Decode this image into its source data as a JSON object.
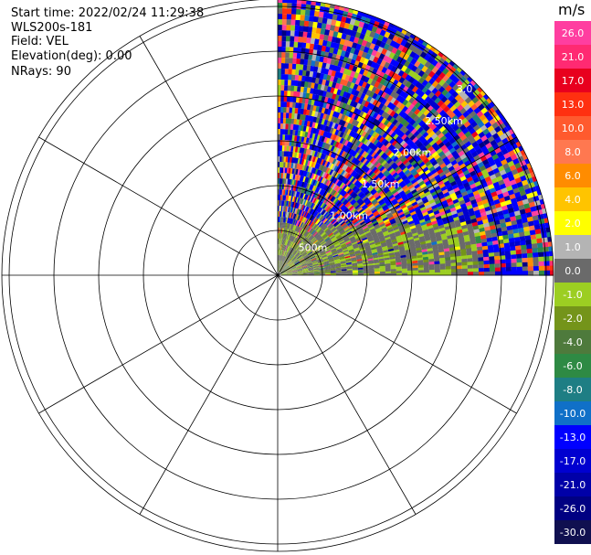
{
  "header": {
    "start_time": "Start time: 2022/02/24 11:29:38",
    "instrument": "WLS200s-181",
    "field": "Field: VEL",
    "elevation": "Elevation(deg): 0.00",
    "nrays": "NRays: 90"
  },
  "chart_data": {
    "type": "ppi-polar",
    "field": "VEL",
    "units": "m/s",
    "sector_deg": [
      0,
      90
    ],
    "range_rings_km": [
      0.5,
      1.0,
      1.5,
      2.0,
      2.5,
      3.0
    ],
    "range_ring_labels": [
      "500m",
      "1.00km",
      "1.50km",
      "2.00km",
      "2.50km",
      "3.0"
    ],
    "spokes_deg": [
      0,
      30,
      60,
      90,
      120,
      150,
      180,
      210,
      240,
      270,
      300,
      330
    ],
    "colorbar": {
      "ticks": [
        "26.0",
        "21.0",
        "17.0",
        "13.0",
        "10.0",
        "8.0",
        "6.0",
        "4.0",
        "2.0",
        "1.0",
        "0.0",
        "-1.0",
        "-2.0",
        "-4.0",
        "-6.0",
        "-8.0",
        "-10.0",
        "-13.0",
        "-17.0",
        "-21.0",
        "-26.0",
        "-30.0"
      ],
      "colors": [
        "#ff3ea0",
        "#ff2a72",
        "#e8001e",
        "#ff3010",
        "#ff5a2e",
        "#ff7850",
        "#ff8c00",
        "#ffc400",
        "#ffff00",
        "#b4b4b4",
        "#6a6a6a",
        "#9cce22",
        "#74941a",
        "#4e7a3c",
        "#2e8a44",
        "#1e7e84",
        "#1070c8",
        "#0000ff",
        "#0000d0",
        "#0000a8",
        "#000082",
        "#101050"
      ]
    }
  }
}
